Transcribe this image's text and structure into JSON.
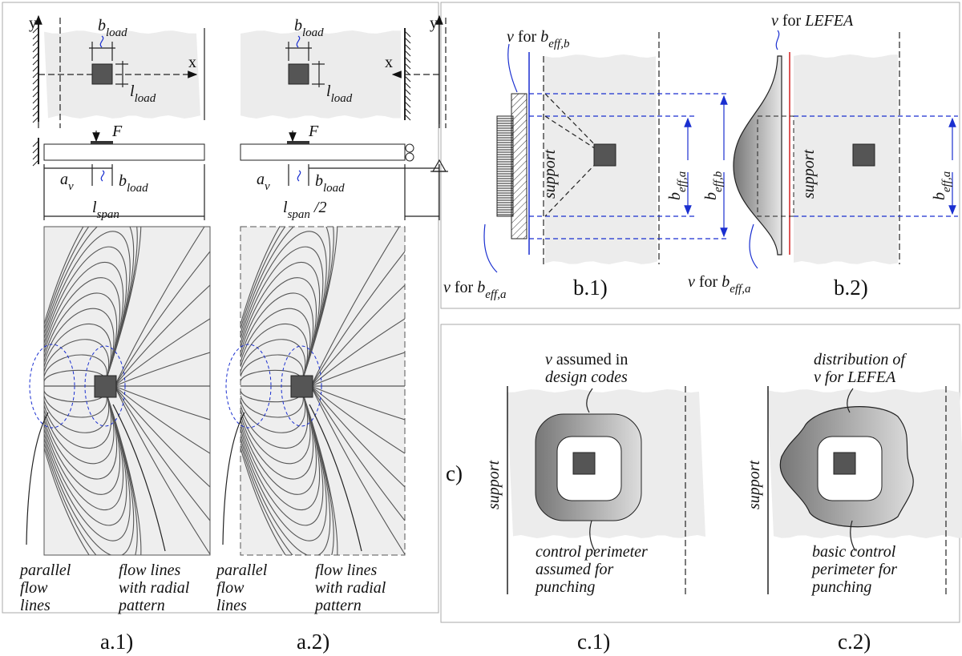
{
  "panels": {
    "a1": {
      "axis_y": "y",
      "axis_x": "x",
      "load_width": [
        "b",
        "load"
      ],
      "load_length": [
        "l",
        "load"
      ],
      "force": "F",
      "shear_span": [
        "a",
        "v"
      ],
      "load_width_elevation": [
        "b",
        "load"
      ],
      "span": [
        "l",
        "span"
      ],
      "parallel_note": [
        "parallel",
        "flow",
        "lines"
      ],
      "radial_note": [
        "flow lines",
        "with radial",
        "pattern"
      ],
      "caption": "a.1)"
    },
    "a2": {
      "axis_y": "y",
      "axis_x": "x",
      "load_width": [
        "b",
        "load"
      ],
      "load_length": [
        "l",
        "load"
      ],
      "force": "F",
      "shear_span": [
        "a",
        "v"
      ],
      "load_width_elevation": [
        "b",
        "load"
      ],
      "span": [
        "l",
        "span",
        " /2"
      ],
      "parallel_note": [
        "parallel",
        "flow",
        "lines"
      ],
      "radial_note": [
        "flow lines",
        "with radial",
        "pattern"
      ],
      "caption": "a.2)"
    },
    "b1": {
      "v_top": [
        "v",
        " for ",
        "b",
        "eff,b"
      ],
      "support": "support",
      "width_a": [
        "b",
        "eff,a"
      ],
      "width_b": [
        "b",
        "eff,b"
      ],
      "v_bottom": [
        "v",
        " for ",
        "b",
        "eff,a"
      ],
      "caption": "b.1)"
    },
    "b2": {
      "v_top": [
        "v",
        " for ",
        "LEFEA"
      ],
      "support": "support",
      "width_a": [
        "b",
        "eff,a"
      ],
      "v_bottom": [
        "v",
        " for ",
        "b",
        "eff,a"
      ],
      "caption": "b.2)"
    },
    "c": {
      "label": "c)"
    },
    "c1": {
      "support": "support",
      "top_note": [
        [
          "v",
          " assumed in"
        ],
        "design codes"
      ],
      "bottom_note": [
        "control perimeter",
        "assumed for",
        "punching"
      ],
      "caption": "c.1)"
    },
    "c2": {
      "support": "support",
      "top_note": [
        "distribution of",
        "v for LEFEA"
      ],
      "bottom_note": [
        "basic control",
        "perimeter for",
        "punching"
      ],
      "caption": "c.2)"
    }
  }
}
